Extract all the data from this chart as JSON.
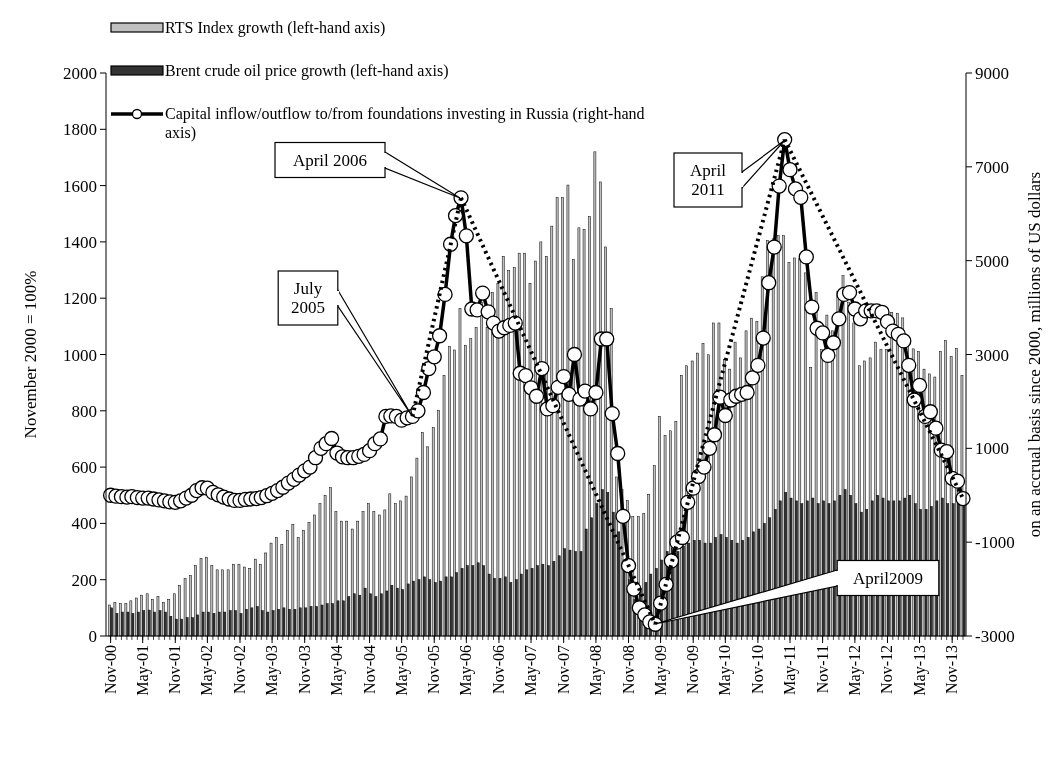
{
  "chart_data": {
    "type": "bar",
    "ylabel": "November 2000 = 100%",
    "y2label": "on an accrual basis since 2000, millions of US dollars",
    "x": [
      "2000-11",
      "2000-12",
      "2001-01",
      "2001-02",
      "2001-03",
      "2001-04",
      "2001-05",
      "2001-06",
      "2001-07",
      "2001-08",
      "2001-09",
      "2001-10",
      "2001-11",
      "2001-12",
      "2002-01",
      "2002-02",
      "2002-03",
      "2002-04",
      "2002-05",
      "2002-06",
      "2002-07",
      "2002-08",
      "2002-09",
      "2002-10",
      "2002-11",
      "2002-12",
      "2003-01",
      "2003-02",
      "2003-03",
      "2003-04",
      "2003-05",
      "2003-06",
      "2003-07",
      "2003-08",
      "2003-09",
      "2003-10",
      "2003-11",
      "2003-12",
      "2004-01",
      "2004-02",
      "2004-03",
      "2004-04",
      "2004-05",
      "2004-06",
      "2004-07",
      "2004-08",
      "2004-09",
      "2004-10",
      "2004-11",
      "2004-12",
      "2005-01",
      "2005-02",
      "2005-03",
      "2005-04",
      "2005-05",
      "2005-06",
      "2005-07",
      "2005-08",
      "2005-09",
      "2005-10",
      "2005-11",
      "2005-12",
      "2006-01",
      "2006-02",
      "2006-03",
      "2006-04",
      "2006-05",
      "2006-06",
      "2006-07",
      "2006-08",
      "2006-09",
      "2006-10",
      "2006-11",
      "2006-12",
      "2007-01",
      "2007-02",
      "2007-03",
      "2007-04",
      "2007-05",
      "2007-06",
      "2007-07",
      "2007-08",
      "2007-09",
      "2007-10",
      "2007-11",
      "2007-12",
      "2008-01",
      "2008-02",
      "2008-03",
      "2008-04",
      "2008-05",
      "2008-06",
      "2008-07",
      "2008-08",
      "2008-09",
      "2008-10",
      "2008-11",
      "2008-12",
      "2009-01",
      "2009-02",
      "2009-03",
      "2009-04",
      "2009-05",
      "2009-06",
      "2009-07",
      "2009-08",
      "2009-09",
      "2009-10",
      "2009-11",
      "2009-12",
      "2010-01",
      "2010-02",
      "2010-03",
      "2010-04",
      "2010-05",
      "2010-06",
      "2010-07",
      "2010-08",
      "2010-09",
      "2010-10",
      "2010-11",
      "2010-12",
      "2011-01",
      "2011-02",
      "2011-03",
      "2011-04",
      "2011-05",
      "2011-06",
      "2011-07",
      "2011-08",
      "2011-09",
      "2011-10",
      "2011-11",
      "2011-12",
      "2012-01",
      "2012-02",
      "2012-03",
      "2012-04",
      "2012-05",
      "2012-06",
      "2012-07",
      "2012-08",
      "2012-09",
      "2012-10",
      "2012-11",
      "2012-12",
      "2013-01",
      "2013-02",
      "2013-03",
      "2013-04",
      "2013-05",
      "2013-06",
      "2013-07",
      "2013-08",
      "2013-09",
      "2013-10",
      "2013-11",
      "2013-12",
      "2014-01"
    ],
    "xlim": [
      "2000-10-06",
      "2014-01-18"
    ],
    "xticks": [
      {
        "value": "2000-11",
        "label": "Nov-00"
      },
      {
        "value": "2001-05",
        "label": "May-01"
      },
      {
        "value": "2001-11",
        "label": "Nov-01"
      },
      {
        "value": "2002-05",
        "label": "May-02"
      },
      {
        "value": "2002-11",
        "label": "Nov-02"
      },
      {
        "value": "2003-05",
        "label": "May-03"
      },
      {
        "value": "2003-11",
        "label": "Nov-03"
      },
      {
        "value": "2004-05",
        "label": "May-04"
      },
      {
        "value": "2004-11",
        "label": "Nov-04"
      },
      {
        "value": "2005-05",
        "label": "May-05"
      },
      {
        "value": "2005-11",
        "label": "Nov-05"
      },
      {
        "value": "2006-05",
        "label": "May-06"
      },
      {
        "value": "2006-11",
        "label": "Nov-06"
      },
      {
        "value": "2007-05",
        "label": "May-07"
      },
      {
        "value": "2007-11",
        "label": "Nov-07"
      },
      {
        "value": "2008-05",
        "label": "May-08"
      },
      {
        "value": "2008-11",
        "label": "Nov-08"
      },
      {
        "value": "2009-05",
        "label": "May-09"
      },
      {
        "value": "2009-11",
        "label": "Nov-09"
      },
      {
        "value": "2010-05",
        "label": "May-10"
      },
      {
        "value": "2010-11",
        "label": "Nov-10"
      },
      {
        "value": "2011-05",
        "label": "May-11"
      },
      {
        "value": "2011-11",
        "label": "Nov-11"
      },
      {
        "value": "2012-05",
        "label": "May-12"
      },
      {
        "value": "2012-11",
        "label": "Nov-12"
      },
      {
        "value": "2013-05",
        "label": "May-13"
      },
      {
        "value": "2013-11",
        "label": "Nov-13"
      }
    ],
    "ylim": [
      0,
      2000
    ],
    "yticks": [
      0,
      200,
      400,
      600,
      800,
      1000,
      1200,
      1400,
      1600,
      1800,
      2000
    ],
    "y2lim": [
      -3000,
      9000
    ],
    "y2ticks": [
      -3000,
      -1000,
      1000,
      3000,
      5000,
      7000,
      9000
    ],
    "legend": "top left",
    "series": [
      {
        "name": "RTS Index growth (left-hand axis)",
        "color": "#c0c0c0",
        "values": [
          110,
          120,
          115,
          115,
          125,
          135,
          145,
          150,
          130,
          140,
          120,
          130,
          150,
          180,
          205,
          215,
          250,
          275,
          280,
          250,
          235,
          235,
          235,
          255,
          255,
          245,
          240,
          273,
          255,
          295,
          330,
          350,
          325,
          375,
          397,
          350,
          375,
          403,
          430,
          470,
          500,
          527,
          442,
          408,
          408,
          380,
          408,
          442,
          470,
          442,
          430,
          448,
          505,
          470,
          480,
          497,
          565,
          632,
          723,
          672,
          740,
          802,
          926,
          1028,
          1016,
          1163,
          1033,
          1056,
          1096,
          1186,
          1096,
          1220,
          1253,
          1349,
          1298,
          1309,
          1360,
          1360,
          1253,
          1332,
          1400,
          1349,
          1456,
          1557,
          1557,
          1602,
          1337,
          1450,
          1445,
          1490,
          1720,
          1613,
          1382,
          1163,
          565,
          520,
          481,
          424,
          424,
          436,
          503,
          605,
          780,
          712,
          729,
          763,
          926,
          960,
          977,
          1005,
          1039,
          999,
          1112,
          1112,
          982,
          948,
          1044,
          988,
          1084,
          1129,
          1118,
          1276,
          1405,
          1411,
          1422,
          1422,
          1326,
          1343,
          1340,
          1290,
          954,
          1220,
          1017,
          1140,
          1084,
          1225,
          1280,
          1186,
          1112,
          960,
          977,
          988,
          1044,
          1017,
          1017,
          1150,
          1146,
          1130,
          1040,
          1020,
          1010,
          948,
          931,
          920,
          1010,
          1050,
          993,
          1022,
          926
        ]
      },
      {
        "name": "Brent crude oil price growth (left-hand axis)",
        "color": "#333333",
        "values": [
          100,
          80,
          85,
          85,
          80,
          85,
          90,
          92,
          85,
          90,
          85,
          70,
          60,
          60,
          65,
          65,
          75,
          85,
          85,
          80,
          85,
          85,
          90,
          90,
          80,
          95,
          100,
          105,
          90,
          85,
          90,
          95,
          100,
          95,
          95,
          100,
          100,
          105,
          105,
          110,
          115,
          115,
          125,
          125,
          140,
          150,
          145,
          170,
          150,
          140,
          150,
          160,
          180,
          170,
          165,
          185,
          195,
          200,
          210,
          200,
          190,
          195,
          210,
          210,
          225,
          240,
          250,
          250,
          260,
          250,
          220,
          205,
          205,
          210,
          190,
          200,
          220,
          235,
          240,
          250,
          255,
          250,
          265,
          285,
          310,
          305,
          300,
          300,
          380,
          420,
          470,
          520,
          510,
          440,
          370,
          270,
          200,
          130,
          170,
          190,
          220,
          240,
          270,
          300,
          310,
          300,
          320,
          330,
          340,
          340,
          330,
          330,
          350,
          360,
          350,
          340,
          330,
          340,
          350,
          370,
          380,
          400,
          420,
          450,
          480,
          510,
          490,
          480,
          470,
          480,
          490,
          470,
          480,
          470,
          480,
          500,
          520,
          500,
          470,
          440,
          450,
          480,
          500,
          490,
          480,
          480,
          480,
          490,
          500,
          470,
          450,
          450,
          460,
          480,
          490,
          470,
          470,
          470,
          480
        ]
      },
      {
        "name": "Capital inflow/outflow to/from foundations investing in Russia (right-hand axis)",
        "type": "line",
        "axis": "y2",
        "color": "#000000",
        "marker": "circle",
        "values": [
          0,
          -20,
          -30,
          -40,
          -30,
          -50,
          -60,
          -60,
          -80,
          -100,
          -120,
          -140,
          -150,
          -120,
          -60,
          0,
          100,
          160,
          150,
          60,
          10,
          -40,
          -80,
          -110,
          -110,
          -90,
          -80,
          -70,
          -50,
          -10,
          40,
          100,
          170,
          260,
          340,
          430,
          520,
          600,
          800,
          1000,
          1100,
          1210,
          900,
          820,
          800,
          800,
          830,
          870,
          950,
          1100,
          1200,
          1680,
          1690,
          1680,
          1600,
          1650,
          1680,
          1800,
          2190,
          2700,
          2950,
          3400,
          4280,
          5350,
          5960,
          6340,
          5530,
          3970,
          3950,
          4310,
          3910,
          3670,
          3500,
          3570,
          3620,
          3670,
          2600,
          2550,
          2290,
          2110,
          2700,
          1840,
          1910,
          2300,
          2530,
          2150,
          3000,
          2050,
          2220,
          1840,
          2190,
          3330,
          3330,
          1740,
          890,
          -450,
          -1500,
          -2000,
          -2400,
          -2550,
          -2700,
          -2750,
          -2300,
          -1900,
          -1400,
          -1000,
          -900,
          -150,
          150,
          400,
          600,
          1000,
          1290,
          2090,
          1700,
          2030,
          2110,
          2150,
          2190,
          2500,
          2770,
          3350,
          4530,
          5290,
          6590,
          7580,
          6940,
          6530,
          6350,
          5080,
          4010,
          3560,
          3460,
          2980,
          3250,
          3760,
          4280,
          4320,
          3970,
          3760,
          3930,
          3930,
          3930,
          3900,
          3700,
          3500,
          3430,
          3290,
          2770,
          2030,
          2340,
          1680,
          1780,
          1430,
          960,
          930,
          360,
          300,
          -70
        ]
      },
      {
        "type": "line",
        "axis": "y2",
        "color": "#000000",
        "marker": "none",
        "line_style": "dotted",
        "x": [
          "2005-07",
          "2006-04"
        ],
        "values": [
          1680,
          6340
        ]
      },
      {
        "type": "line",
        "axis": "y2",
        "color": "#000000",
        "marker": "none",
        "line_style": "dotted",
        "x": [
          "2006-04",
          "2009-04"
        ],
        "values": [
          6340,
          -2750
        ]
      },
      {
        "type": "line",
        "axis": "y2",
        "color": "#000000",
        "marker": "none",
        "line_style": "dotted",
        "x": [
          "2009-04",
          "2011-04"
        ],
        "values": [
          -2750,
          7580
        ]
      },
      {
        "type": "line",
        "axis": "y2",
        "color": "#000000",
        "marker": "none",
        "line_style": "dotted",
        "x": [
          "2011-04",
          "2014-01"
        ],
        "values": [
          7580,
          -70
        ]
      }
    ],
    "annotations": [
      "April 2006",
      "July 2005",
      "April 2011",
      "April2009"
    ]
  }
}
